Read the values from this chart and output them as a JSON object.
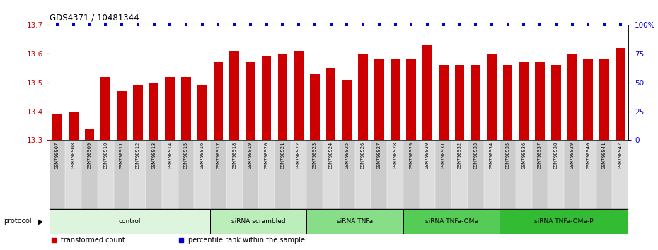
{
  "title": "GDS4371 / 10481344",
  "samples": [
    "GSM790907",
    "GSM790908",
    "GSM790909",
    "GSM790910",
    "GSM790911",
    "GSM790912",
    "GSM790913",
    "GSM790914",
    "GSM790915",
    "GSM790916",
    "GSM790917",
    "GSM790918",
    "GSM790919",
    "GSM790920",
    "GSM790921",
    "GSM790922",
    "GSM790923",
    "GSM790924",
    "GSM790925",
    "GSM790926",
    "GSM790927",
    "GSM790928",
    "GSM790929",
    "GSM790930",
    "GSM790931",
    "GSM790932",
    "GSM790933",
    "GSM790934",
    "GSM790935",
    "GSM790936",
    "GSM790937",
    "GSM790938",
    "GSM790939",
    "GSM790940",
    "GSM790941",
    "GSM790942"
  ],
  "bar_values": [
    13.39,
    13.4,
    13.34,
    13.52,
    13.47,
    13.49,
    13.5,
    13.52,
    13.52,
    13.49,
    13.57,
    13.61,
    13.57,
    13.59,
    13.6,
    13.61,
    13.53,
    13.55,
    13.51,
    13.6,
    13.58,
    13.58,
    13.58,
    13.63,
    13.56,
    13.56,
    13.56,
    13.6,
    13.56,
    13.57,
    13.57,
    13.56,
    13.6,
    13.58,
    13.58,
    13.62
  ],
  "bar_color": "#cc0000",
  "percentile_color": "#0000cc",
  "ymin": 13.3,
  "ymax": 13.7,
  "yticks": [
    13.3,
    13.4,
    13.5,
    13.6,
    13.7
  ],
  "right_yticks": [
    0,
    25,
    50,
    75,
    100
  ],
  "right_yticklabels": [
    "0",
    "25",
    "50",
    "75",
    "100%"
  ],
  "groups": [
    {
      "label": "control",
      "start": 0,
      "end": 9,
      "color": "#ddf5dd"
    },
    {
      "label": "siRNA scrambled",
      "start": 10,
      "end": 15,
      "color": "#bbeebb"
    },
    {
      "label": "siRNA TNFa",
      "start": 16,
      "end": 21,
      "color": "#88dd88"
    },
    {
      "label": "siRNA TNFa-OMe",
      "start": 22,
      "end": 27,
      "color": "#55cc55"
    },
    {
      "label": "siRNA TNFa-OMe-P",
      "start": 28,
      "end": 35,
      "color": "#33bb33"
    }
  ],
  "xtick_colors": [
    "#cccccc",
    "#dddddd"
  ],
  "legend_items": [
    {
      "label": "transformed count",
      "color": "#cc0000"
    },
    {
      "label": "percentile rank within the sample",
      "color": "#0000cc"
    }
  ]
}
